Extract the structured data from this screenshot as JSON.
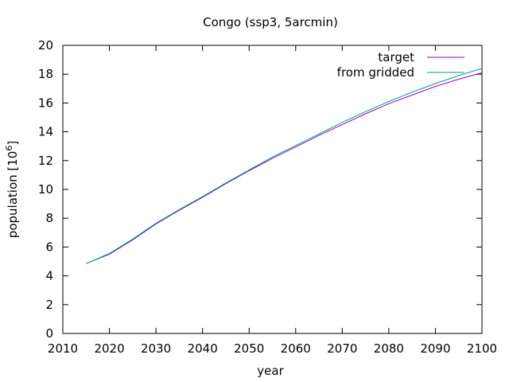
{
  "chart_data": {
    "type": "line",
    "title": "Congo (ssp3, 5arcmin)",
    "xlabel": "year",
    "ylabel": "population [10",
    "ylabel_sup": "6",
    "ylabel_close": "]",
    "xlim": [
      2010,
      2100
    ],
    "ylim": [
      0,
      20
    ],
    "xticks": [
      "2010",
      "2020",
      "2030",
      "2040",
      "2050",
      "2060",
      "2070",
      "2080",
      "2090",
      "2100"
    ],
    "yticks": [
      "0",
      "2",
      "4",
      "6",
      "8",
      "10",
      "12",
      "14",
      "16",
      "18",
      "20"
    ],
    "grid": false,
    "legend_position": "top-right",
    "series": [
      {
        "name": "target",
        "color": "#9400d3",
        "points": [
          [
            2015,
            4.85
          ],
          [
            2020,
            5.5
          ],
          [
            2025,
            6.5
          ],
          [
            2030,
            7.6
          ],
          [
            2035,
            8.55
          ],
          [
            2040,
            9.45
          ],
          [
            2045,
            10.4
          ],
          [
            2050,
            11.3
          ],
          [
            2055,
            12.15
          ],
          [
            2060,
            12.95
          ],
          [
            2065,
            13.75
          ],
          [
            2070,
            14.5
          ],
          [
            2075,
            15.25
          ],
          [
            2080,
            15.95
          ],
          [
            2085,
            16.55
          ],
          [
            2090,
            17.15
          ],
          [
            2095,
            17.65
          ],
          [
            2100,
            18.1
          ]
        ]
      },
      {
        "name": "from gridded",
        "color": "#009e73",
        "points": [
          [
            2015,
            4.85
          ],
          [
            2020,
            5.55
          ],
          [
            2025,
            6.55
          ],
          [
            2030,
            7.65
          ],
          [
            2035,
            8.6
          ],
          [
            2040,
            9.5
          ],
          [
            2045,
            10.45
          ],
          [
            2050,
            11.35
          ],
          [
            2055,
            12.25
          ],
          [
            2060,
            13.05
          ],
          [
            2065,
            13.85
          ],
          [
            2070,
            14.65
          ],
          [
            2075,
            15.4
          ],
          [
            2080,
            16.1
          ],
          [
            2085,
            16.75
          ],
          [
            2090,
            17.35
          ],
          [
            2095,
            17.9
          ],
          [
            2100,
            18.4
          ]
        ]
      }
    ]
  }
}
